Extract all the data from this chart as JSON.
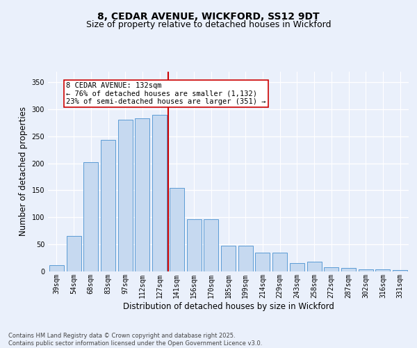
{
  "title": "8, CEDAR AVENUE, WICKFORD, SS12 9DT",
  "subtitle": "Size of property relative to detached houses in Wickford",
  "xlabel": "Distribution of detached houses by size in Wickford",
  "ylabel": "Number of detached properties",
  "categories": [
    "39sqm",
    "54sqm",
    "68sqm",
    "83sqm",
    "97sqm",
    "112sqm",
    "127sqm",
    "141sqm",
    "156sqm",
    "170sqm",
    "185sqm",
    "199sqm",
    "214sqm",
    "229sqm",
    "243sqm",
    "258sqm",
    "272sqm",
    "287sqm",
    "302sqm",
    "316sqm",
    "331sqm"
  ],
  "heights": [
    12,
    65,
    202,
    243,
    280,
    283,
    290,
    155,
    97,
    97,
    48,
    48,
    35,
    35,
    16,
    18,
    8,
    6,
    4,
    4,
    3
  ],
  "bar_face_color": "#c6d9f0",
  "bar_edge_color": "#5b9bd5",
  "vline_color": "#cc0000",
  "vline_index": 6.5,
  "annotation_text": "8 CEDAR AVENUE: 132sqm\n← 76% of detached houses are smaller (1,132)\n23% of semi-detached houses are larger (351) →",
  "annotation_box_edge_color": "#cc0000",
  "annotation_bg": "#ffffff",
  "ylim": [
    0,
    370
  ],
  "yticks": [
    0,
    50,
    100,
    150,
    200,
    250,
    300,
    350
  ],
  "bg_color": "#eaf0fb",
  "fig_bg_color": "#eaf0fb",
  "grid_color": "#ffffff",
  "footer": "Contains HM Land Registry data © Crown copyright and database right 2025.\nContains public sector information licensed under the Open Government Licence v3.0.",
  "title_fontsize": 10,
  "subtitle_fontsize": 9,
  "ylabel_fontsize": 8.5,
  "xlabel_fontsize": 8.5,
  "tick_fontsize": 7,
  "annotation_fontsize": 7.5,
  "footer_fontsize": 6
}
